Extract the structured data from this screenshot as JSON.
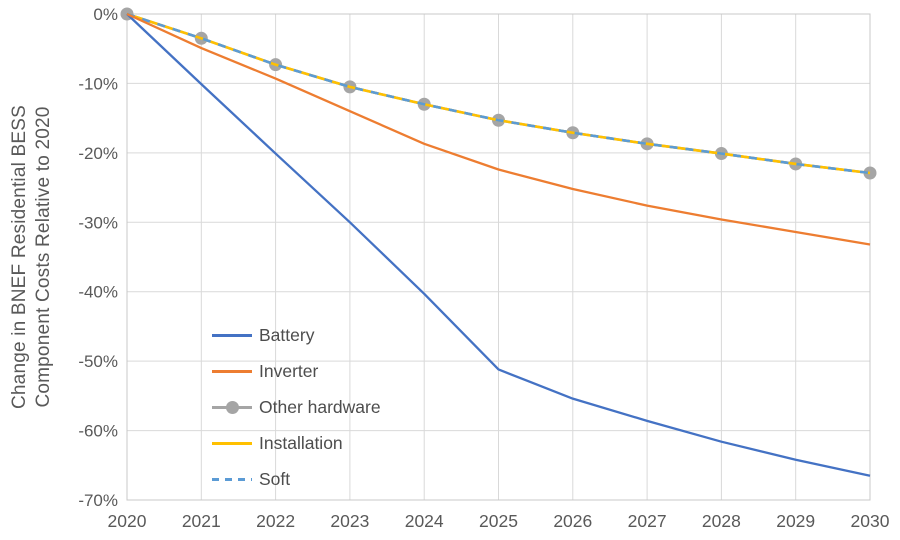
{
  "chart_data": {
    "type": "line",
    "title": "",
    "ylabel": "Change in BNEF Residential BESS Component Costs Relative to 2020",
    "ylabel_lines": [
      "Change in BNEF Residential BESS",
      "Component Costs Relative to 2020"
    ],
    "x": [
      2020,
      2021,
      2022,
      2023,
      2024,
      2025,
      2026,
      2027,
      2028,
      2029,
      2030
    ],
    "xtick_labels": [
      "2020",
      "2021",
      "2022",
      "2023",
      "2024",
      "2025",
      "2026",
      "2027",
      "2028",
      "2029",
      "2030"
    ],
    "ytick_values": [
      0,
      -10,
      -20,
      -30,
      -40,
      -50,
      -60,
      -70
    ],
    "ytick_labels": [
      "0%",
      "-10%",
      "-20%",
      "-30%",
      "-40%",
      "-50%",
      "-60%",
      "-70%"
    ],
    "ylim": [
      -70,
      0
    ],
    "grid": true,
    "legend_position": "inside lower-left",
    "series": [
      {
        "name": "Battery",
        "color": "#4472C4",
        "line_style": "solid",
        "marker": "none",
        "values": [
          0,
          -10.1,
          -20.1,
          -30.0,
          -40.3,
          -51.2,
          -55.4,
          -58.6,
          -61.6,
          -64.2,
          -66.5
        ]
      },
      {
        "name": "Inverter",
        "color": "#ED7D31",
        "line_style": "solid",
        "marker": "none",
        "values": [
          0,
          -4.9,
          -9.3,
          -14.0,
          -18.7,
          -22.4,
          -25.2,
          -27.6,
          -29.6,
          -31.4,
          -33.2
        ]
      },
      {
        "name": "Other hardware",
        "color": "#A5A5A5",
        "line_style": "solid",
        "marker": "circle",
        "values": [
          0,
          -3.5,
          -7.3,
          -10.5,
          -13.0,
          -15.3,
          -17.1,
          -18.7,
          -20.1,
          -21.6,
          -22.9
        ]
      },
      {
        "name": "Installation",
        "color": "#FFC000",
        "line_style": "solid",
        "marker": "none",
        "values": [
          0,
          -3.5,
          -7.3,
          -10.5,
          -13.0,
          -15.3,
          -17.1,
          -18.7,
          -20.1,
          -21.6,
          -22.9
        ]
      },
      {
        "name": "Soft",
        "color": "#5B9BD5",
        "line_style": "dashed",
        "marker": "none",
        "values": [
          0,
          -3.5,
          -7.3,
          -10.5,
          -13.0,
          -15.3,
          -17.1,
          -18.7,
          -20.1,
          -21.6,
          -22.9
        ]
      }
    ],
    "colors": {
      "gridline": "#D9D9D9",
      "plot_border": "#C8C8C8",
      "axis_text": "#595959"
    }
  }
}
